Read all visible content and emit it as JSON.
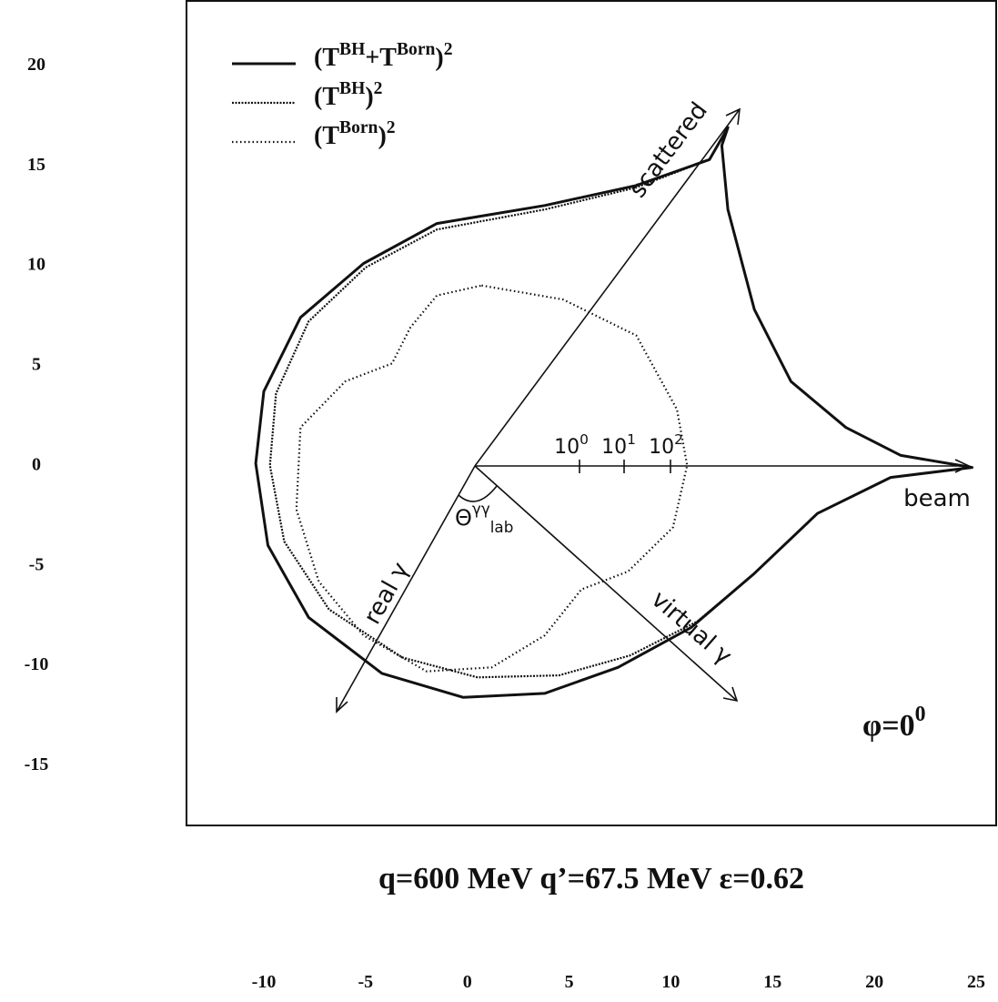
{
  "chart_data": {
    "type": "polar-line",
    "title": "q=600 MeV q’=67.5 MeV ε=0.62",
    "xlim": [
      -10,
      25
    ],
    "ylim": [
      -15,
      20
    ],
    "xticks": [
      -10,
      -5,
      0,
      5,
      10,
      15,
      20,
      25
    ],
    "yticks": [
      -15,
      -10,
      -5,
      0,
      5,
      10,
      15,
      20
    ],
    "legend": "top-left",
    "series": [
      {
        "name": "(T^{BH}+T^{Born})^{2}",
        "color": "#111111",
        "style": "solid",
        "x": [
          12.8,
          11.9,
          8.3,
          3.8,
          -1.5,
          -5.1,
          -8.2,
          -10.0,
          -10.4,
          -9.8,
          -7.8,
          -4.2,
          -0.2,
          3.8,
          7.4,
          11.0,
          14.1,
          17.2,
          20.8,
          24.8,
          21.3,
          18.6,
          15.9,
          14.1,
          12.8,
          12.5
        ],
        "y": [
          16.9,
          15.3,
          14.0,
          13.0,
          12.1,
          10.1,
          7.4,
          3.7,
          0.1,
          -4.0,
          -7.6,
          -10.4,
          -11.6,
          -11.4,
          -10.1,
          -8.1,
          -5.4,
          -2.4,
          -0.6,
          -0.1,
          0.5,
          1.9,
          4.2,
          7.8,
          12.8,
          16.0
        ]
      },
      {
        "name": "(T^{BH})^{2}",
        "color": "#111111",
        "style": "dense-dotted",
        "x": [
          12.8,
          11.9,
          8.3,
          3.8,
          -1.5,
          -5.0,
          -7.8,
          -9.4,
          -9.7,
          -9.0,
          -6.8,
          -3.2,
          0.5,
          4.5,
          8.0,
          11.3,
          14.1,
          17.2,
          20.8,
          24.8,
          21.3,
          18.6,
          15.9,
          14.1,
          12.8,
          12.5
        ],
        "y": [
          16.9,
          15.3,
          13.9,
          12.8,
          11.8,
          9.9,
          7.2,
          3.6,
          0,
          -3.8,
          -7.2,
          -9.6,
          -10.6,
          -10.5,
          -9.5,
          -7.8,
          -5.4,
          -2.4,
          -0.6,
          -0.1,
          0.5,
          1.9,
          4.2,
          7.8,
          12.8,
          16.0
        ]
      },
      {
        "name": "(T^{Born})^{2}",
        "color": "#111111",
        "style": "dotted",
        "x": [
          0.7,
          4.7,
          8.3,
          10.3,
          10.8,
          10.1,
          7.9,
          5.6,
          3.8,
          1.2,
          -2.0,
          -5.1,
          -7.3,
          -8.4,
          -8.2,
          -6.0,
          -3.7,
          -2.8,
          -1.5
        ],
        "y": [
          9.0,
          8.3,
          6.5,
          2.8,
          0,
          -3.1,
          -5.3,
          -6.2,
          -8.5,
          -10.1,
          -10.3,
          -8.5,
          -5.8,
          -2.2,
          1.9,
          4.2,
          5.1,
          6.9,
          8.5
        ]
      }
    ],
    "annotations": {
      "scattered": "scattered",
      "beam": "beam",
      "virtual": "virtual γ",
      "real": "real γ",
      "angle": "Θ^{γγ}_{lab}",
      "phi": "φ=0^{0}",
      "radial_ticks": [
        "10^{0}",
        "10^{1}",
        "10^{2}"
      ]
    }
  }
}
